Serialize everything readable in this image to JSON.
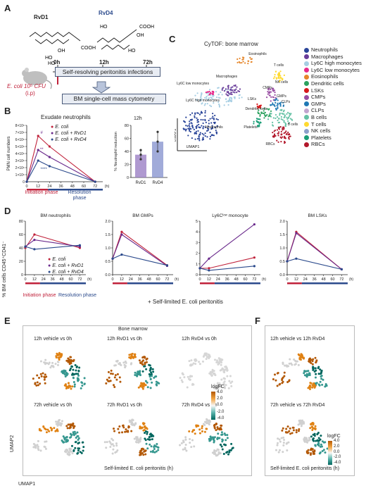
{
  "panels": {
    "A": "A",
    "B": "B",
    "C": "C",
    "D": "D",
    "E": "E",
    "F": "F"
  },
  "panelA": {
    "rvd1": "RvD1",
    "rvd4": "RvD4",
    "t0": "0h",
    "t12": "12h",
    "t72": "72h",
    "box1": "Self-resolving peritonitis infections",
    "box2": "BM single-cell mass cytometry",
    "inoculum": "E. coli 10⁵ CFU",
    "route": "(i.p)",
    "colors": {
      "rvd1": "#222222",
      "rvd4": "#2b4a8c",
      "arrow": "#c0223b"
    }
  },
  "panelB": {
    "title": "Exudate neutrophils",
    "ylabel": "PMN cell numbers",
    "xunit": "(h)",
    "legend": [
      "E. coli",
      "E. coli + RvD1",
      "E. coli + RvD4"
    ],
    "init": "Initiation phase",
    "res": "Resolution phase",
    "bar_title": "12h",
    "bar_ylabel": "% Neutrophil reduction",
    "sig": {
      "s1": "#",
      "s2": "**",
      "s3": "****"
    }
  },
  "panelC": {
    "title": "CyTOF: bone marrow",
    "xaxis": "UMAP1",
    "yaxis": "UMAP2",
    "legend": [
      {
        "label": "Neutrophils",
        "color": "#2a4599"
      },
      {
        "label": "Macrophages",
        "color": "#6a3d9a"
      },
      {
        "label": "Ly6C high monocytes",
        "color": "#a6cee3"
      },
      {
        "label": "Ly6C low monocytes",
        "color": "#e7298a"
      },
      {
        "label": "Eosinophils",
        "color": "#e6862a"
      },
      {
        "label": "Dendritic cells",
        "color": "#2ca25f"
      },
      {
        "label": "LSKs",
        "color": "#d7191c"
      },
      {
        "label": "CMPs",
        "color": "#984ea3"
      },
      {
        "label": "GMPs",
        "color": "#1f78b4"
      },
      {
        "label": "CLPs",
        "color": "#c2a5cf"
      },
      {
        "label": "B cells",
        "color": "#66c2a5"
      },
      {
        "label": "T cells",
        "color": "#ffd92f"
      },
      {
        "label": "NK cells",
        "color": "#8da0cb"
      },
      {
        "label": "Platelets",
        "color": "#1b9e77"
      },
      {
        "label": "RBCs",
        "color": "#b2182b"
      }
    ],
    "annotations": {
      "eos": "Eosinophils",
      "mac": "Macrophages",
      "ly6clow": "Ly6C low monocytes",
      "ly6chigh": "Ly6C high monocytes",
      "tcells": "T cells",
      "nk": "NK cells",
      "cmps": "CMPs",
      "gmps": "GMPs",
      "clps": "CLPs",
      "lsks": "LSKs",
      "dc": "Dendritic cells",
      "plt": "Platelets",
      "bcells": "B cells",
      "rbc": "RBCs",
      "neut": "Neutrophils"
    }
  },
  "panelD": {
    "ylabel": "% BM cells CD45⁺CD41⁻",
    "titles": [
      "BM neutrophils",
      "BM GMPs",
      "Ly6Cˡᵒʷ monocyte",
      "BM LSKs"
    ],
    "legend": [
      "E. coli",
      "E. coli + RvD1",
      "E. coli + RvD4"
    ],
    "xticks": [
      "0",
      "12",
      "24",
      "36",
      "48",
      "60",
      "72"
    ],
    "xunit": "(h)",
    "init": "Initiation phase",
    "res": "Resolution phase",
    "footer": "+ Self-limited E. coli peritonitis"
  },
  "panelE": {
    "section": "Bone marrow",
    "row1": [
      "12h vehicle vs 0h",
      "12h RvD1 vs 0h",
      "12h RvD4 vs 0h"
    ],
    "row2": [
      "72h vehicle vs 0h",
      "72h RvD1 vs 0h",
      "72h RvD4 vs 0h"
    ],
    "legend_title": "logFC",
    "legend_ticks": [
      "4.0",
      "2.0",
      "0.0",
      "-2.0",
      "-4.0"
    ],
    "footer": "Self-limited E. coli peritonitis (h)",
    "yaxis": "UMAP2",
    "xaxis": "UMAP1"
  },
  "panelF": {
    "row1": "12h vehicle vs 12h RvD4",
    "row2": "72h vehicle vs 72h RvD4",
    "legend_title": "logFC",
    "legend_ticks": [
      "4.0",
      "2.0",
      "0.0",
      "-2.0",
      "-4.0"
    ],
    "footer": "Self-limited E. coli peritonitis (h)"
  },
  "chart_data": [
    {
      "type": "line",
      "title": "Exudate neutrophils",
      "ylabel": "PMN cell numbers",
      "xlabel": "(h)",
      "x": [
        0,
        12,
        24,
        72
      ],
      "yticks": [
        "0",
        "1×10⁶",
        "2×10⁶",
        "3×10⁶",
        "4×10⁶",
        "5×10⁶",
        "6×10⁶",
        "7×10⁶",
        "8×10⁶"
      ],
      "ylim": [
        0,
        8000000
      ],
      "xlim": [
        0,
        80
      ],
      "series": [
        {
          "name": "E. coli",
          "color": "#c0223b",
          "values": [
            0,
            6500000,
            5000000,
            0
          ]
        },
        {
          "name": "E. coli + RvD1",
          "color": "#6a2a8c",
          "values": [
            0,
            4500000,
            3500000,
            0
          ]
        },
        {
          "name": "E. coli + RvD4",
          "color": "#2b4a8c",
          "values": [
            0,
            3000000,
            2200000,
            0
          ]
        }
      ]
    },
    {
      "type": "bar",
      "title": "12h",
      "ylabel": "% Neutrophil reduction",
      "categories": [
        "RvD1",
        "RvD4"
      ],
      "values": [
        35,
        55
      ],
      "points": [
        [
          28,
          35,
          42
        ],
        [
          40,
          55,
          70
        ]
      ],
      "yticks": [
        "0",
        "20",
        "40",
        "60",
        "80"
      ],
      "ylim": [
        0,
        80
      ],
      "colors": [
        "#9b7fc4",
        "#8a96d0"
      ]
    },
    {
      "type": "line",
      "title": "BM neutrophils",
      "x": [
        0,
        12,
        72
      ],
      "ylim": [
        0,
        80
      ],
      "yticks": [
        "0",
        "20",
        "40",
        "60",
        "80"
      ],
      "series": [
        {
          "name": "E. coli",
          "color": "#c0223b",
          "values": [
            40,
            60,
            40
          ]
        },
        {
          "name": "E. coli + RvD1",
          "color": "#6a2a8c",
          "values": [
            42,
            52,
            42
          ]
        },
        {
          "name": "E. coli + RvD4",
          "color": "#2b4a8c",
          "values": [
            42,
            38,
            44
          ]
        }
      ]
    },
    {
      "type": "line",
      "title": "BM GMPs",
      "x": [
        0,
        12,
        72
      ],
      "ylim": [
        0,
        2.0
      ],
      "yticks": [
        "0.0",
        "0.5",
        "1.0",
        "1.5",
        "2.0"
      ],
      "series": [
        {
          "name": "E. coli",
          "color": "#c0223b",
          "values": [
            0.6,
            1.6,
            0.35
          ]
        },
        {
          "name": "E. coli + RvD1",
          "color": "#6a2a8c",
          "values": [
            0.6,
            1.5,
            0.33
          ]
        },
        {
          "name": "E. coli + RvD4",
          "color": "#2b4a8c",
          "values": [
            0.6,
            0.75,
            0.35
          ]
        }
      ]
    },
    {
      "type": "line",
      "title": "Ly6Cˡᵒʷ monocyte",
      "x": [
        0,
        12,
        72
      ],
      "ylim": [
        0,
        5
      ],
      "yticks": [
        "0",
        "1",
        "2",
        "3",
        "4",
        "5"
      ],
      "series": [
        {
          "name": "E. coli",
          "color": "#c0223b",
          "values": [
            0.6,
            0.6,
            1.6
          ]
        },
        {
          "name": "E. coli + RvD1",
          "color": "#6a2a8c",
          "values": [
            0.6,
            1.5,
            4.7
          ]
        },
        {
          "name": "E. coli + RvD4",
          "color": "#2b4a8c",
          "values": [
            0.6,
            0.4,
            0.8
          ]
        }
      ]
    },
    {
      "type": "line",
      "title": "BM LSKs",
      "x": [
        0,
        12,
        72
      ],
      "ylim": [
        0,
        2.0
      ],
      "yticks": [
        "0.0",
        "0.5",
        "1.0",
        "1.5",
        "2.0"
      ],
      "series": [
        {
          "name": "E. coli",
          "color": "#c0223b",
          "values": [
            0.5,
            1.6,
            0.2
          ]
        },
        {
          "name": "E. coli + RvD1",
          "color": "#6a2a8c",
          "values": [
            0.5,
            1.55,
            0.2
          ]
        },
        {
          "name": "E. coli + RvD4",
          "color": "#2b4a8c",
          "values": [
            0.5,
            0.6,
            0.2
          ]
        }
      ]
    }
  ]
}
